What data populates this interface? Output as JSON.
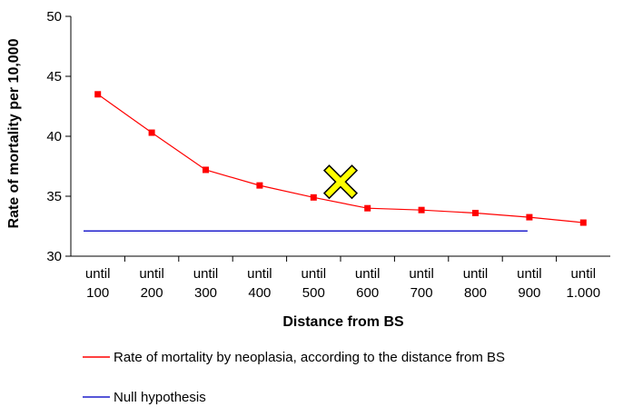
{
  "chart_data": {
    "type": "line",
    "categories": [
      "until 100",
      "until 200",
      "until 300",
      "until 400",
      "until 500",
      "until 600",
      "until 700",
      "until 800",
      "until 900",
      "until 1.000"
    ],
    "category_lines": [
      [
        "until",
        "100"
      ],
      [
        "until",
        "200"
      ],
      [
        "until",
        "300"
      ],
      [
        "until",
        "400"
      ],
      [
        "until",
        "500"
      ],
      [
        "until",
        "600"
      ],
      [
        "until",
        "700"
      ],
      [
        "until",
        "800"
      ],
      [
        "until",
        "900"
      ],
      [
        "until",
        "1.000"
      ]
    ],
    "series": [
      {
        "name": "Rate of mortality by neoplasia, according to the distance from BS",
        "color": "#ff0000",
        "values": [
          43.5,
          40.3,
          37.2,
          35.9,
          34.9,
          34.0,
          33.85,
          33.6,
          33.25,
          32.8
        ]
      },
      {
        "name": "Null hypothesis",
        "color": "#1f1fcc",
        "value": 32.1,
        "x_range": [
          "until 100",
          "until 900"
        ]
      }
    ],
    "xlabel": "Distance from BS",
    "ylabel": "Rate of mortality per 10,000",
    "ylim": [
      30,
      50
    ],
    "yticks": [
      30,
      35,
      40,
      45,
      50
    ],
    "marker": {
      "symbol": "x-cross",
      "color": "#ffff00",
      "near_category": "until 600"
    },
    "grid": false,
    "legend_position": "bottom"
  }
}
